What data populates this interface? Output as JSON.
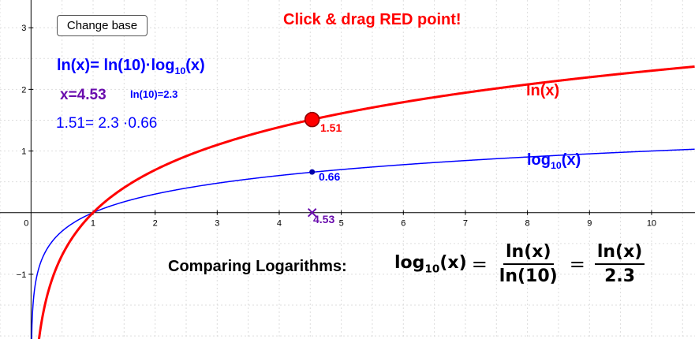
{
  "controls": {
    "change_base_label": "Change base"
  },
  "instruction": "Click & drag RED point!",
  "identity": {
    "lhs": "ln(x)= ln(10)·log",
    "sub": "10",
    "rhs": "(x)"
  },
  "x_readout": "x=4.53",
  "ln10_readout": "ln(10)=2.3",
  "product_readout": "1.51= 2.3 ·0.66",
  "curve_labels": {
    "ln": "ln(x)",
    "log_pre": "log",
    "log_sub": "10",
    "log_post": "(x)"
  },
  "point_labels": {
    "ln_value": "1.51",
    "log_value": "0.66",
    "x_value": "4.53"
  },
  "comparison": {
    "title": "Comparing Logarithms:",
    "lhs_pre": "log",
    "lhs_sub": "10",
    "lhs_post": "(x)",
    "frac1_num": "ln(x)",
    "frac1_den": "ln(10)",
    "frac2_num": "ln(x)",
    "frac2_den": "2.3"
  },
  "colors": {
    "ln_curve": "#ff0000",
    "log_curve": "#0000ff",
    "marker": "#6a0dad",
    "axis": "#000000",
    "grid": "#dddddd"
  },
  "chart_data": {
    "type": "line",
    "xlim": [
      -0.5,
      10.7
    ],
    "ylim": [
      -2.05,
      3.45
    ],
    "x_ticks": [
      0,
      1,
      2,
      3,
      4,
      5,
      6,
      7,
      8,
      9,
      10
    ],
    "y_ticks": [
      -1,
      0,
      1,
      2,
      3
    ],
    "grid": true,
    "series": [
      {
        "name": "ln(x)",
        "function": "ln(x)",
        "color": "#ff0000"
      },
      {
        "name": "log10(x)",
        "function": "log10(x)",
        "color": "#0000ff"
      }
    ],
    "point": {
      "x": 4.53,
      "ln_y": 1.51,
      "log_y": 0.66
    }
  }
}
